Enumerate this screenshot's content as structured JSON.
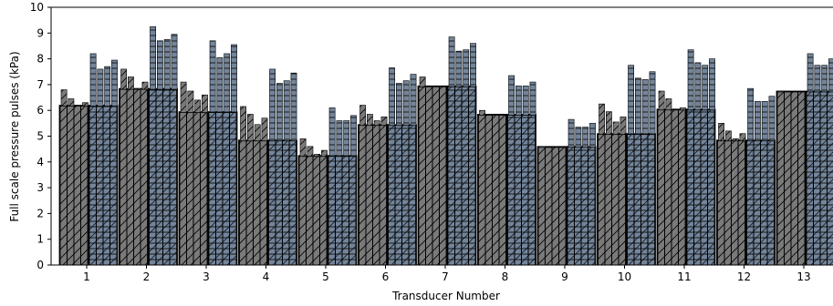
{
  "chart_data": {
    "type": "bar",
    "xlabel": "Transducer Number",
    "ylabel": "Full scale pressure pulses (kPa)",
    "ylim": [
      0,
      10
    ],
    "yticks": [
      "0",
      "1",
      "2",
      "3",
      "4",
      "5",
      "6",
      "7",
      "8",
      "9",
      "10"
    ],
    "categories": [
      "1",
      "2",
      "3",
      "4",
      "5",
      "6",
      "7",
      "8",
      "9",
      "10",
      "11",
      "12",
      "13"
    ],
    "colors": {
      "group_a": "#7a7a7a",
      "group_b": "#73859b",
      "wide_bar": "#000000",
      "edge": "#000000"
    },
    "groups": [
      {
        "a": [
          6.8,
          6.45,
          6.2,
          6.3
        ],
        "a_mean": 6.2,
        "b": [
          8.2,
          7.6,
          7.7,
          7.95
        ],
        "b_mean": 6.2
      },
      {
        "a": [
          7.6,
          7.3,
          6.85,
          7.1
        ],
        "a_mean": 6.85,
        "b": [
          9.25,
          8.7,
          8.75,
          8.95
        ],
        "b_mean": 6.85
      },
      {
        "a": [
          7.1,
          6.75,
          6.4,
          6.6
        ],
        "a_mean": 5.95,
        "b": [
          8.7,
          8.05,
          8.2,
          8.55
        ],
        "b_mean": 5.95
      },
      {
        "a": [
          6.15,
          5.85,
          5.45,
          5.7
        ],
        "a_mean": 4.85,
        "b": [
          7.6,
          7.05,
          7.15,
          7.45
        ],
        "b_mean": 4.85
      },
      {
        "a": [
          4.9,
          4.6,
          4.3,
          4.45
        ],
        "a_mean": 4.25,
        "b": [
          6.1,
          5.6,
          5.6,
          5.8
        ],
        "b_mean": 4.25
      },
      {
        "a": [
          6.2,
          5.85,
          5.6,
          5.75
        ],
        "a_mean": 5.45,
        "b": [
          7.65,
          7.05,
          7.15,
          7.4
        ],
        "b_mean": 5.45
      },
      {
        "a": [
          7.3,
          6.85,
          6.5,
          6.75
        ],
        "a_mean": 6.95,
        "b": [
          8.85,
          8.3,
          8.35,
          8.6
        ],
        "b_mean": 6.95
      },
      {
        "a": [
          6.0,
          5.65,
          5.3,
          5.45
        ],
        "a_mean": 5.85,
        "b": [
          7.35,
          6.95,
          6.95,
          7.1
        ],
        "b_mean": 5.85
      },
      {
        "a": [
          4.6,
          4.3,
          4.05,
          4.15
        ],
        "a_mean": 4.6,
        "b": [
          5.65,
          5.35,
          5.35,
          5.5
        ],
        "b_mean": 4.6
      },
      {
        "a": [
          6.25,
          5.95,
          5.55,
          5.75
        ],
        "a_mean": 5.1,
        "b": [
          7.75,
          7.25,
          7.2,
          7.5
        ],
        "b_mean": 5.1
      },
      {
        "a": [
          6.75,
          6.45,
          6.0,
          6.1
        ],
        "a_mean": 6.05,
        "b": [
          8.35,
          7.85,
          7.75,
          8.0
        ],
        "b_mean": 6.05
      },
      {
        "a": [
          5.5,
          5.2,
          4.9,
          5.1
        ],
        "a_mean": 4.85,
        "b": [
          6.85,
          6.35,
          6.35,
          6.55
        ],
        "b_mean": 4.85
      },
      {
        "a": [
          6.75,
          6.5,
          6.1,
          6.25
        ],
        "a_mean": 6.75,
        "b": [
          8.2,
          7.75,
          7.75,
          8.0
        ],
        "b_mean": 6.75
      }
    ]
  }
}
